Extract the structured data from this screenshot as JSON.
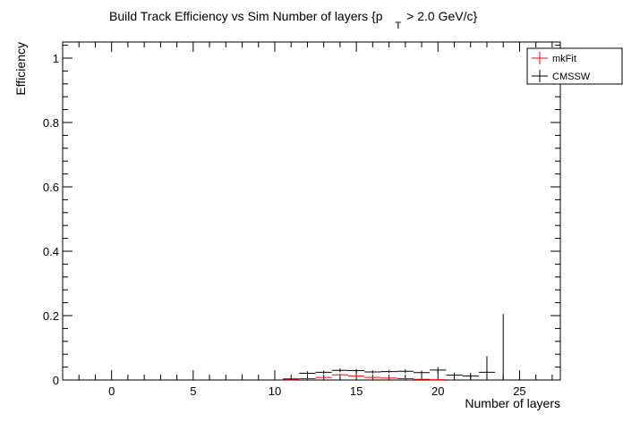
{
  "chart_data": {
    "type": "scatter",
    "title": "Build Track Efficiency vs Sim Number of layers {p",
    "title_sub": "T",
    "title_tail": " > 2.0 GeV/c}",
    "xlabel": "Number of layers",
    "ylabel": "Efficiency",
    "xlim": [
      -3,
      27.5
    ],
    "ylim": [
      0,
      1.05
    ],
    "x_ticks": [
      0,
      5,
      10,
      15,
      20,
      25
    ],
    "y_ticks": [
      0,
      0.2,
      0.4,
      0.6,
      0.8,
      1
    ],
    "y_tick_labels": [
      "0",
      "0.2",
      "0.4",
      "0.6",
      "0.8",
      "1"
    ],
    "legend_position": "top-right",
    "grid": false,
    "series": [
      {
        "name": "mkFit",
        "color": "#ff0000",
        "points": [
          {
            "x": 11,
            "y": 0.001,
            "err": 0.001
          },
          {
            "x": 12,
            "y": 0.004,
            "err": 0.002
          },
          {
            "x": 13,
            "y": 0.008,
            "err": 0.003
          },
          {
            "x": 14,
            "y": 0.016,
            "err": 0.004
          },
          {
            "x": 15,
            "y": 0.012,
            "err": 0.003
          },
          {
            "x": 16,
            "y": 0.008,
            "err": 0.003
          },
          {
            "x": 17,
            "y": 0.006,
            "err": 0.002
          },
          {
            "x": 18,
            "y": 0.004,
            "err": 0.002
          },
          {
            "x": 19,
            "y": 0.002,
            "err": 0.001
          },
          {
            "x": 20,
            "y": 0.001,
            "err": 0.001
          }
        ]
      },
      {
        "name": "CMSSW",
        "color": "#000000",
        "points": [
          {
            "x": 11,
            "y": 0.003,
            "err": 0.002
          },
          {
            "x": 12,
            "y": 0.021,
            "err": 0.006
          },
          {
            "x": 13,
            "y": 0.024,
            "err": 0.005
          },
          {
            "x": 14,
            "y": 0.03,
            "err": 0.006
          },
          {
            "x": 15,
            "y": 0.029,
            "err": 0.005
          },
          {
            "x": 16,
            "y": 0.025,
            "err": 0.005
          },
          {
            "x": 17,
            "y": 0.026,
            "err": 0.005
          },
          {
            "x": 18,
            "y": 0.027,
            "err": 0.006
          },
          {
            "x": 19,
            "y": 0.023,
            "err": 0.006
          },
          {
            "x": 20,
            "y": 0.031,
            "err": 0.009
          },
          {
            "x": 21,
            "y": 0.015,
            "err": 0.008
          },
          {
            "x": 22,
            "y": 0.012,
            "err": 0.01
          },
          {
            "x": 23,
            "y": 0.024,
            "err": 0.05
          },
          {
            "x": 24,
            "y": 0.0,
            "err": 0.205
          }
        ]
      }
    ]
  }
}
